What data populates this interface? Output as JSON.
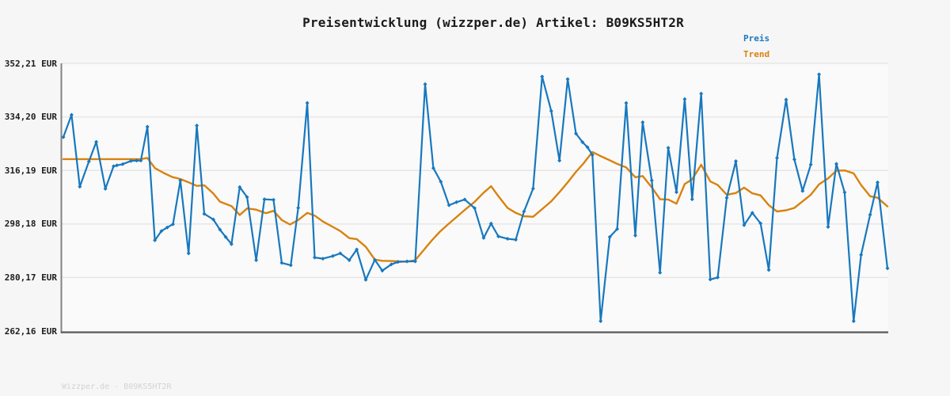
{
  "title": "Preisentwicklung (wizzper.de) Artikel: B09KS5HT2R",
  "watermark": "Wizzper.de - B09KS5HT2R",
  "legend": {
    "items": [
      {
        "label": "Preis",
        "color": "#1878be"
      },
      {
        "label": "Trend",
        "color": "#d9820f"
      }
    ]
  },
  "y_axis": {
    "unit": "EUR",
    "labels": [
      "352,21 EUR",
      "334,20 EUR",
      "316,19 EUR",
      "298,18 EUR",
      "280,17 EUR",
      "262,16 EUR"
    ],
    "values": [
      352.21,
      334.2,
      316.19,
      298.18,
      280.17,
      262.16
    ]
  },
  "colors": {
    "grid": "#e4e4e4",
    "spine_left": "#828282",
    "spine_bottom": "#5f5f5f",
    "plot_bg": "#fafafa"
  },
  "chart_data": {
    "type": "line",
    "title": "Preisentwicklung (wizzper.de) Artikel: B09KS5HT2R",
    "xlabel": "",
    "ylabel": "EUR",
    "ylim": [
      262.16,
      352.21
    ],
    "yticks": [
      352.21,
      334.2,
      316.19,
      298.18,
      280.17,
      262.16
    ],
    "x_axis_labels": "none (time axis unlabeled)",
    "grid": "horizontal",
    "legend_position": "top-right",
    "series": [
      {
        "name": "Preis",
        "color": "#1878be",
        "marker": "diamond",
        "points": [
          [
            0.0,
            327.4
          ],
          [
            0.01,
            334.9
          ],
          [
            0.02,
            310.7
          ],
          [
            0.031,
            319.2
          ],
          [
            0.04,
            325.8
          ],
          [
            0.051,
            310.0
          ],
          [
            0.061,
            317.6
          ],
          [
            0.065,
            317.9
          ],
          [
            0.072,
            318.3
          ],
          [
            0.082,
            319.4
          ],
          [
            0.089,
            319.5
          ],
          [
            0.094,
            319.5
          ],
          [
            0.102,
            330.9
          ],
          [
            0.111,
            292.7
          ],
          [
            0.119,
            295.8
          ],
          [
            0.126,
            297.0
          ],
          [
            0.133,
            298.1
          ],
          [
            0.142,
            312.8
          ],
          [
            0.152,
            288.3
          ],
          [
            0.162,
            331.3
          ],
          [
            0.171,
            301.6
          ],
          [
            0.182,
            299.7
          ],
          [
            0.19,
            296.3
          ],
          [
            0.197,
            293.8
          ],
          [
            0.204,
            291.4
          ],
          [
            0.214,
            310.6
          ],
          [
            0.223,
            307.2
          ],
          [
            0.234,
            286.0
          ],
          [
            0.244,
            306.5
          ],
          [
            0.255,
            306.3
          ],
          [
            0.265,
            285.1
          ],
          [
            0.276,
            284.3
          ],
          [
            0.285,
            303.6
          ],
          [
            0.296,
            338.9
          ],
          [
            0.305,
            286.9
          ],
          [
            0.315,
            286.5
          ],
          [
            0.327,
            287.4
          ],
          [
            0.336,
            288.3
          ],
          [
            0.347,
            286.0
          ],
          [
            0.356,
            289.6
          ],
          [
            0.367,
            279.4
          ],
          [
            0.378,
            286.1
          ],
          [
            0.387,
            282.5
          ],
          [
            0.398,
            284.6
          ],
          [
            0.406,
            285.4
          ],
          [
            0.417,
            285.6
          ],
          [
            0.427,
            285.6
          ],
          [
            0.439,
            345.2
          ],
          [
            0.449,
            317.0
          ],
          [
            0.458,
            312.4
          ],
          [
            0.468,
            304.5
          ],
          [
            0.477,
            305.5
          ],
          [
            0.487,
            306.4
          ],
          [
            0.499,
            303.5
          ],
          [
            0.51,
            293.5
          ],
          [
            0.519,
            298.3
          ],
          [
            0.528,
            294.0
          ],
          [
            0.539,
            293.2
          ],
          [
            0.549,
            292.9
          ],
          [
            0.559,
            302.4
          ],
          [
            0.57,
            310.1
          ],
          [
            0.581,
            347.8
          ],
          [
            0.592,
            336.2
          ],
          [
            0.602,
            319.5
          ],
          [
            0.612,
            346.9
          ],
          [
            0.622,
            328.6
          ],
          [
            0.63,
            325.7
          ],
          [
            0.636,
            324.0
          ],
          [
            0.642,
            321.4
          ],
          [
            0.652,
            265.5
          ],
          [
            0.663,
            293.8
          ],
          [
            0.672,
            296.5
          ],
          [
            0.683,
            338.9
          ],
          [
            0.694,
            294.3
          ],
          [
            0.703,
            332.4
          ],
          [
            0.714,
            312.8
          ],
          [
            0.724,
            281.8
          ],
          [
            0.734,
            323.8
          ],
          [
            0.744,
            308.9
          ],
          [
            0.754,
            340.2
          ],
          [
            0.763,
            306.5
          ],
          [
            0.774,
            342.0
          ],
          [
            0.785,
            279.5
          ],
          [
            0.794,
            280.2
          ],
          [
            0.805,
            307.0
          ],
          [
            0.816,
            319.3
          ],
          [
            0.826,
            297.8
          ],
          [
            0.836,
            301.9
          ],
          [
            0.846,
            298.4
          ],
          [
            0.856,
            282.7
          ],
          [
            0.866,
            320.4
          ],
          [
            0.877,
            340.0
          ],
          [
            0.887,
            319.9
          ],
          [
            0.897,
            309.3
          ],
          [
            0.907,
            318.2
          ],
          [
            0.917,
            348.5
          ],
          [
            0.928,
            297.2
          ],
          [
            0.938,
            318.4
          ],
          [
            0.948,
            308.8
          ],
          [
            0.959,
            265.5
          ],
          [
            0.968,
            287.8
          ],
          [
            0.979,
            301.3
          ],
          [
            0.988,
            312.2
          ],
          [
            1.0,
            283.3
          ]
        ]
      },
      {
        "name": "Trend",
        "color": "#d9820f",
        "marker": "none",
        "points": [
          [
            0.0,
            320.0
          ],
          [
            0.05,
            320.0
          ],
          [
            0.094,
            320.0
          ],
          [
            0.102,
            320.4
          ],
          [
            0.111,
            317.0
          ],
          [
            0.122,
            315.3
          ],
          [
            0.132,
            314.0
          ],
          [
            0.142,
            313.3
          ],
          [
            0.152,
            312.2
          ],
          [
            0.162,
            311.0
          ],
          [
            0.171,
            311.2
          ],
          [
            0.182,
            308.4
          ],
          [
            0.19,
            305.7
          ],
          [
            0.204,
            304.2
          ],
          [
            0.214,
            301.2
          ],
          [
            0.223,
            303.4
          ],
          [
            0.234,
            303.0
          ],
          [
            0.246,
            301.8
          ],
          [
            0.255,
            302.6
          ],
          [
            0.265,
            299.5
          ],
          [
            0.275,
            298.0
          ],
          [
            0.285,
            299.5
          ],
          [
            0.296,
            301.9
          ],
          [
            0.305,
            301.0
          ],
          [
            0.315,
            299.0
          ],
          [
            0.327,
            297.2
          ],
          [
            0.336,
            295.8
          ],
          [
            0.347,
            293.4
          ],
          [
            0.356,
            293.1
          ],
          [
            0.367,
            290.5
          ],
          [
            0.378,
            286.2
          ],
          [
            0.387,
            285.8
          ],
          [
            0.398,
            285.7
          ],
          [
            0.406,
            285.6
          ],
          [
            0.417,
            285.5
          ],
          [
            0.427,
            286.0
          ],
          [
            0.437,
            289.3
          ],
          [
            0.447,
            292.6
          ],
          [
            0.457,
            295.6
          ],
          [
            0.467,
            298.1
          ],
          [
            0.477,
            300.5
          ],
          [
            0.487,
            302.9
          ],
          [
            0.499,
            305.6
          ],
          [
            0.51,
            308.7
          ],
          [
            0.519,
            310.9
          ],
          [
            0.528,
            307.5
          ],
          [
            0.539,
            303.6
          ],
          [
            0.549,
            301.9
          ],
          [
            0.559,
            300.8
          ],
          [
            0.57,
            300.6
          ],
          [
            0.581,
            303.2
          ],
          [
            0.592,
            305.8
          ],
          [
            0.602,
            308.9
          ],
          [
            0.612,
            312.2
          ],
          [
            0.622,
            315.7
          ],
          [
            0.631,
            318.5
          ],
          [
            0.642,
            322.4
          ],
          [
            0.652,
            321.0
          ],
          [
            0.663,
            319.6
          ],
          [
            0.672,
            318.4
          ],
          [
            0.683,
            317.2
          ],
          [
            0.694,
            313.9
          ],
          [
            0.703,
            314.3
          ],
          [
            0.714,
            310.5
          ],
          [
            0.724,
            306.5
          ],
          [
            0.734,
            306.4
          ],
          [
            0.744,
            305.0
          ],
          [
            0.754,
            311.6
          ],
          [
            0.763,
            313.2
          ],
          [
            0.774,
            318.1
          ],
          [
            0.785,
            312.5
          ],
          [
            0.794,
            311.3
          ],
          [
            0.805,
            308.0
          ],
          [
            0.816,
            308.6
          ],
          [
            0.826,
            310.4
          ],
          [
            0.836,
            308.5
          ],
          [
            0.846,
            307.8
          ],
          [
            0.856,
            304.5
          ],
          [
            0.866,
            302.4
          ],
          [
            0.877,
            302.8
          ],
          [
            0.887,
            303.6
          ],
          [
            0.897,
            305.8
          ],
          [
            0.907,
            308.0
          ],
          [
            0.917,
            311.5
          ],
          [
            0.928,
            313.5
          ],
          [
            0.938,
            316.1
          ],
          [
            0.948,
            316.2
          ],
          [
            0.959,
            315.2
          ],
          [
            0.968,
            311.3
          ],
          [
            0.979,
            307.5
          ],
          [
            0.988,
            307.0
          ],
          [
            1.0,
            304.1
          ]
        ]
      }
    ]
  }
}
